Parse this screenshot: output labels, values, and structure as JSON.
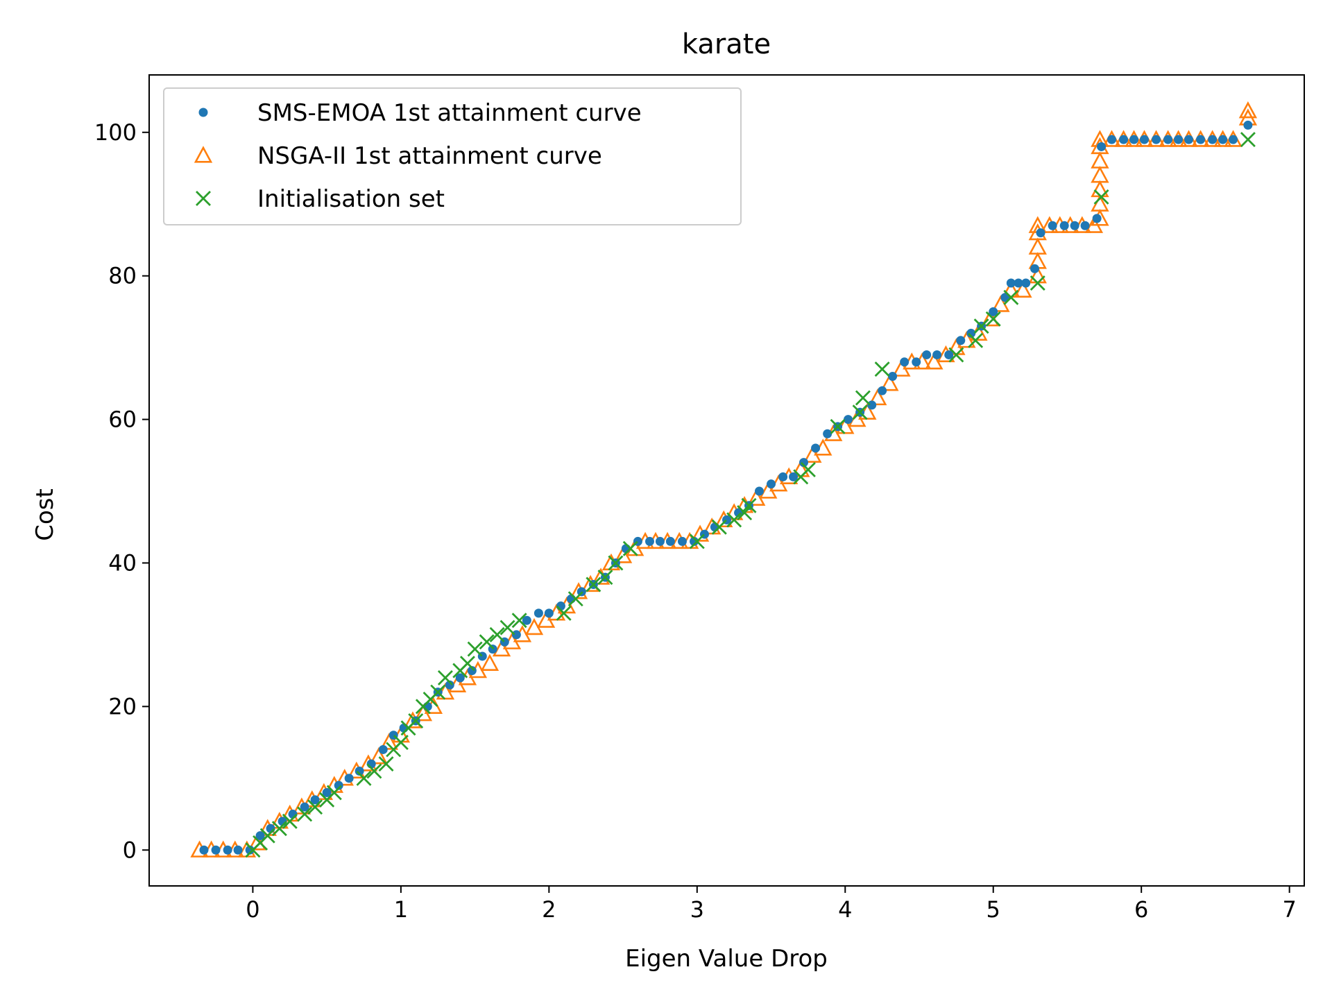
{
  "chart_data": {
    "type": "scatter",
    "title": "karate",
    "xlabel": "Eigen Value Drop",
    "ylabel": "Cost",
    "xlim": [
      -0.7,
      7.1
    ],
    "ylim": [
      -5,
      108
    ],
    "xticks": [
      0,
      1,
      2,
      3,
      4,
      5,
      6,
      7
    ],
    "yticks": [
      0,
      20,
      40,
      60,
      80,
      100
    ],
    "xtick_labels": [
      "0",
      "1",
      "2",
      "3",
      "4",
      "5",
      "6",
      "7"
    ],
    "ytick_labels": [
      "0",
      "20",
      "40",
      "60",
      "80",
      "100"
    ],
    "legend_position": "upper-left",
    "colors": {
      "sms": "#1f77b4",
      "nsga": "#ff7f0e",
      "init": "#2ca02c"
    },
    "series": [
      {
        "name": "SMS-EMOA 1st attainment curve",
        "marker": "dot",
        "x": [
          -0.33,
          -0.25,
          -0.17,
          -0.1,
          -0.02,
          0.05,
          0.12,
          0.2,
          0.27,
          0.35,
          0.42,
          0.5,
          0.58,
          0.65,
          0.72,
          0.8,
          0.88,
          0.95,
          1.02,
          1.1,
          1.18,
          1.25,
          1.33,
          1.4,
          1.48,
          1.55,
          1.62,
          1.7,
          1.78,
          1.85,
          1.93,
          2.0,
          2.08,
          2.15,
          2.22,
          2.3,
          2.38,
          2.45,
          2.52,
          2.6,
          2.68,
          2.75,
          2.82,
          2.9,
          2.98,
          3.05,
          3.12,
          3.2,
          3.28,
          3.35,
          3.42,
          3.5,
          3.58,
          3.65,
          3.72,
          3.8,
          3.88,
          3.95,
          4.02,
          4.1,
          4.18,
          4.25,
          4.32,
          4.4,
          4.48,
          4.55,
          4.62,
          4.7,
          4.78,
          4.85,
          4.92,
          5.0,
          5.08,
          5.12,
          5.17,
          5.22,
          5.28,
          5.32,
          5.4,
          5.48,
          5.55,
          5.62,
          5.7,
          5.73,
          5.8,
          5.88,
          5.95,
          6.02,
          6.1,
          6.18,
          6.25,
          6.32,
          6.4,
          6.48,
          6.55,
          6.62,
          6.72
        ],
        "y": [
          0,
          0,
          0,
          0,
          0,
          2,
          3,
          4,
          5,
          6,
          7,
          8,
          9,
          10,
          11,
          12,
          14,
          16,
          17,
          18,
          20,
          22,
          23,
          24,
          25,
          27,
          28,
          29,
          30,
          32,
          33,
          33,
          34,
          35,
          36,
          37,
          38,
          40,
          42,
          43,
          43,
          43,
          43,
          43,
          43,
          44,
          45,
          46,
          47,
          48,
          50,
          51,
          52,
          52,
          54,
          56,
          58,
          59,
          60,
          61,
          62,
          64,
          66,
          68,
          68,
          69,
          69,
          69,
          71,
          72,
          73,
          75,
          77,
          79,
          79,
          79,
          81,
          86,
          87,
          87,
          87,
          87,
          88,
          98,
          99,
          99,
          99,
          99,
          99,
          99,
          99,
          99,
          99,
          99,
          99,
          99,
          101
        ]
      },
      {
        "name": "NSGA-II 1st attainment curve",
        "marker": "triangle",
        "x": [
          -0.36,
          -0.28,
          -0.2,
          -0.12,
          -0.04,
          0.03,
          0.1,
          0.18,
          0.25,
          0.33,
          0.4,
          0.48,
          0.55,
          0.62,
          0.7,
          0.78,
          0.85,
          0.92,
          1.0,
          1.08,
          1.15,
          1.22,
          1.3,
          1.38,
          1.45,
          1.52,
          1.6,
          1.68,
          1.75,
          1.82,
          1.9,
          1.98,
          2.05,
          2.12,
          2.2,
          2.28,
          2.35,
          2.42,
          2.5,
          2.58,
          2.65,
          2.72,
          2.8,
          2.88,
          2.95,
          3.02,
          3.1,
          3.18,
          3.25,
          3.32,
          3.4,
          3.48,
          3.55,
          3.62,
          3.7,
          3.78,
          3.85,
          3.92,
          4.0,
          4.08,
          4.15,
          4.22,
          4.3,
          4.38,
          4.45,
          4.52,
          4.6,
          4.68,
          4.75,
          4.82,
          4.9,
          4.98,
          5.05,
          5.12,
          5.2,
          5.3,
          5.3,
          5.3,
          5.3,
          5.3,
          5.38,
          5.45,
          5.52,
          5.6,
          5.68,
          5.72,
          5.72,
          5.72,
          5.72,
          5.72,
          5.72,
          5.72,
          5.8,
          5.88,
          5.95,
          6.02,
          6.1,
          6.18,
          6.25,
          6.32,
          6.4,
          6.48,
          6.55,
          6.62,
          6.72,
          6.72
        ],
        "y": [
          0,
          0,
          0,
          0,
          0,
          1,
          3,
          4,
          5,
          6,
          7,
          8,
          9,
          10,
          11,
          12,
          13,
          15,
          16,
          18,
          19,
          20,
          22,
          23,
          24,
          25,
          26,
          28,
          29,
          30,
          31,
          32,
          33,
          34,
          36,
          37,
          38,
          40,
          41,
          42,
          43,
          43,
          43,
          43,
          43,
          44,
          45,
          46,
          47,
          48,
          49,
          50,
          51,
          52,
          53,
          55,
          56,
          58,
          59,
          60,
          61,
          63,
          65,
          67,
          68,
          68,
          68,
          69,
          70,
          71,
          72,
          74,
          76,
          78,
          78,
          80,
          82,
          84,
          86,
          87,
          87,
          87,
          87,
          87,
          87,
          88,
          90,
          92,
          94,
          96,
          98,
          99,
          99,
          99,
          99,
          99,
          99,
          99,
          99,
          99,
          99,
          99,
          99,
          99,
          102,
          103
        ]
      },
      {
        "name": "Initialisation set",
        "marker": "x",
        "x": [
          0.0,
          0.05,
          0.1,
          0.18,
          0.25,
          0.35,
          0.42,
          0.5,
          0.55,
          0.75,
          0.82,
          0.9,
          0.95,
          1.0,
          1.05,
          1.1,
          1.15,
          1.2,
          1.25,
          1.3,
          1.4,
          1.45,
          1.5,
          1.58,
          1.65,
          1.72,
          1.8,
          2.1,
          2.18,
          2.3,
          2.38,
          2.45,
          2.55,
          3.0,
          3.15,
          3.25,
          3.32,
          3.35,
          3.7,
          3.75,
          3.95,
          4.1,
          4.12,
          4.25,
          4.75,
          4.88,
          4.92,
          5.0,
          5.12,
          5.3,
          5.73,
          6.72
        ],
        "y": [
          0,
          1,
          2,
          3,
          4,
          5,
          6,
          7,
          8,
          10,
          11,
          12,
          14,
          15,
          17,
          18,
          20,
          21,
          22,
          24,
          25,
          26,
          28,
          29,
          30,
          31,
          32,
          33,
          35,
          37,
          38,
          40,
          42,
          43,
          45,
          46,
          47,
          48,
          52,
          53,
          59,
          61,
          63,
          67,
          69,
          71,
          73,
          74,
          77,
          79,
          91,
          99
        ]
      }
    ]
  }
}
